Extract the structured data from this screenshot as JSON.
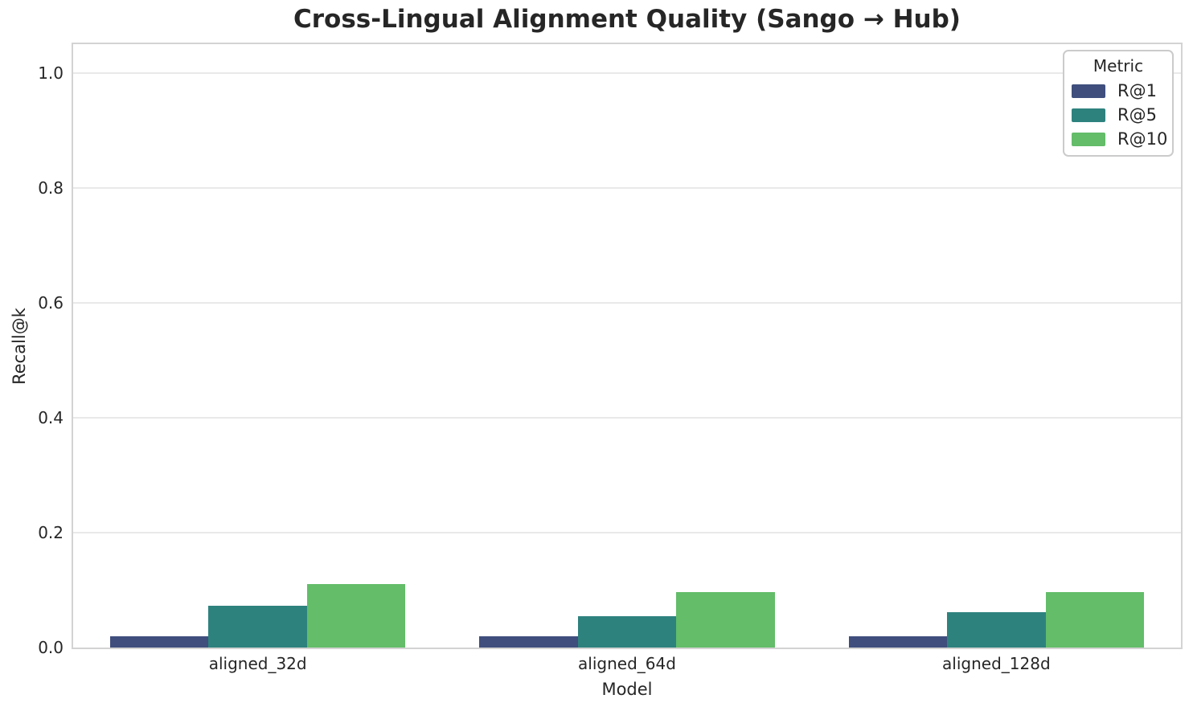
{
  "chart_data": {
    "type": "bar",
    "title": "Cross-Lingual Alignment Quality (Sango → Hub)",
    "xlabel": "Model",
    "ylabel": "Recall@k",
    "categories": [
      "aligned_32d",
      "aligned_64d",
      "aligned_128d"
    ],
    "series": [
      {
        "name": "R@1",
        "color": "#3f4e7d",
        "values": [
          0.02,
          0.02,
          0.02
        ]
      },
      {
        "name": "R@5",
        "color": "#2e827e",
        "values": [
          0.073,
          0.055,
          0.061
        ]
      },
      {
        "name": "R@10",
        "color": "#63bd69",
        "values": [
          0.11,
          0.097,
          0.097
        ]
      }
    ],
    "ylim": [
      0,
      1.05
    ],
    "yticks": [
      0.0,
      0.2,
      0.4,
      0.6,
      0.8,
      1.0
    ],
    "ytick_labels": [
      "0.0",
      "0.2",
      "0.4",
      "0.6",
      "0.8",
      "1.0"
    ],
    "group_width_fraction": 0.8,
    "grid": true,
    "legend": {
      "title": "Metric",
      "position": "upper right"
    }
  },
  "figure": {
    "background_color": "#ffffff",
    "plot_border_color": "#d3d3d3",
    "grid_color": "#e9e9e9",
    "text_color": "#262626"
  }
}
